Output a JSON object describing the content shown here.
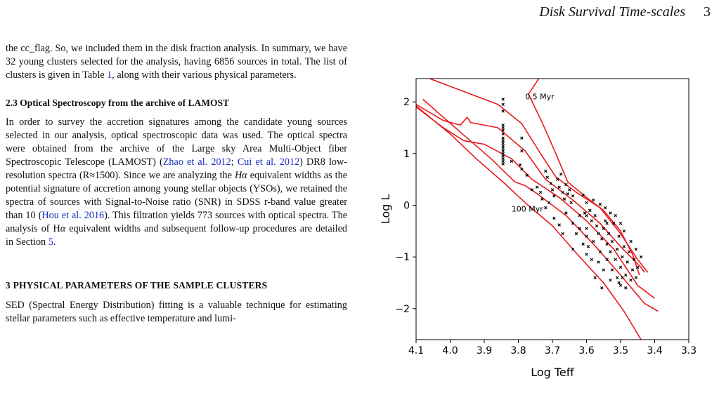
{
  "header": {
    "running_title": "Disk Survival Time-scales",
    "page_number": "3"
  },
  "text": {
    "para1": "the cc_flag. So, we included them in the disk fraction analysis. In summary, we have 32 young clusters selected for the analysis, having 6856 sources in total. The list of clusters is given in Table ",
    "para1_ref": "1",
    "para1_end": ", along with their various physical parameters.",
    "sec23_heading": "2.3 Optical Spectroscopy from the archive of LAMOST",
    "para2_a": "In order to survey the accretion signatures among the candidate young sources selected in our analysis, optical spectroscopic data was used. The optical spectra were obtained from the archive of the Large sky Area Multi-Object fiber Spectroscopic Telescope (LAMOST) (",
    "cite_zhao": "Zhao et al. 2012",
    "sep1": "; ",
    "cite_cui": "Cui et al. 2012",
    "para2_b": ") DR8 low-resolution spectra (R≈1500). Since we are analyzing the ",
    "halpha_italic": "Hα",
    "para2_c": " equivalent widths as the potential signature of accretion among young stellar objects (YSOs), we retained the spectra of sources with Signal-to-Noise ratio (SNR) in SDSS r-band value greater than 10 (",
    "cite_hou": "Hou et al. 2016",
    "para2_d": "). This filtration yields 773 sources with optical spectra. The analysis of H",
    "alpha_italic": "α",
    "para2_e": " equivalent widths and subsequent follow-up procedures are detailed in Section ",
    "sec_ref": "5",
    "para2_f": ".",
    "sec3_heading": "3 PHYSICAL PARAMETERS OF THE SAMPLE CLUSTERS",
    "para3": "SED (Spectral Energy Distribution) fitting is a valuable technique for estimating stellar parameters such as effective temperature and lumi-"
  },
  "chart_data": {
    "type": "scatter",
    "xlabel": "Log Teff",
    "ylabel": "Log L",
    "xlim": [
      4.1,
      3.3
    ],
    "ylim": [
      -2.6,
      2.45
    ],
    "xticks": [
      "4.1",
      "4.0",
      "3.9",
      "3.8",
      "3.7",
      "3.6",
      "3.5",
      "3.4",
      "3.3"
    ],
    "xtick_values": [
      4.1,
      4.0,
      3.9,
      3.8,
      3.7,
      3.6,
      3.5,
      3.4,
      3.3
    ],
    "yticks": [
      "2",
      "1",
      "0",
      "−1",
      "−2"
    ],
    "ytick_values": [
      2,
      1,
      0,
      -1,
      -2
    ],
    "annotations": [
      {
        "text": "0.5 Myr",
        "x": 3.78,
        "y": 2.05
      },
      {
        "text": "100 Myr",
        "x": 3.82,
        "y": -0.12
      }
    ],
    "colors": {
      "isochrone": "#e8191c",
      "points": "#000000"
    },
    "isochrones": [
      {
        "points": [
          [
            3.74,
            2.45
          ],
          [
            3.77,
            2.15
          ],
          [
            3.73,
            1.6
          ],
          [
            3.69,
            1.0
          ],
          [
            3.655,
            0.45
          ],
          [
            3.6,
            0.15
          ],
          [
            3.55,
            -0.1
          ],
          [
            3.5,
            -0.5
          ],
          [
            3.465,
            -0.95
          ],
          [
            3.445,
            -1.35
          ]
        ]
      },
      {
        "points": [
          [
            4.06,
            2.45
          ],
          [
            3.96,
            2.2
          ],
          [
            3.86,
            1.95
          ],
          [
            3.79,
            1.58
          ],
          [
            3.73,
            0.95
          ],
          [
            3.69,
            0.55
          ],
          [
            3.63,
            0.25
          ],
          [
            3.56,
            -0.05
          ],
          [
            3.5,
            -0.55
          ],
          [
            3.45,
            -1.05
          ],
          [
            3.42,
            -1.3
          ]
        ]
      },
      {
        "points": [
          [
            4.1,
            1.95
          ],
          [
            4.02,
            1.64
          ],
          [
            3.97,
            1.55
          ],
          [
            3.95,
            1.7
          ],
          [
            3.94,
            1.6
          ],
          [
            3.86,
            1.5
          ],
          [
            3.78,
            1.05
          ],
          [
            3.72,
            0.5
          ],
          [
            3.64,
            0.1
          ],
          [
            3.56,
            -0.35
          ],
          [
            3.5,
            -0.8
          ],
          [
            3.44,
            -1.2
          ],
          [
            3.43,
            -1.3
          ]
        ]
      },
      {
        "points": [
          [
            4.1,
            1.9
          ],
          [
            4.02,
            1.5
          ],
          [
            3.96,
            1.25
          ],
          [
            3.9,
            1.18
          ],
          [
            3.82,
            0.9
          ],
          [
            3.76,
            0.5
          ],
          [
            3.68,
            0.15
          ],
          [
            3.6,
            -0.3
          ],
          [
            3.52,
            -0.85
          ],
          [
            3.45,
            -1.55
          ],
          [
            3.4,
            -1.8
          ]
        ]
      },
      {
        "points": [
          [
            4.08,
            2.05
          ],
          [
            4.02,
            1.7
          ],
          [
            3.95,
            1.3
          ],
          [
            3.88,
            0.9
          ],
          [
            3.81,
            0.45
          ],
          [
            3.78,
            0.38
          ],
          [
            3.74,
            0.2
          ],
          [
            3.66,
            -0.2
          ],
          [
            3.58,
            -0.75
          ],
          [
            3.5,
            -1.35
          ],
          [
            3.43,
            -1.9
          ],
          [
            3.39,
            -2.05
          ]
        ]
      },
      {
        "points": [
          [
            4.1,
            1.92
          ],
          [
            4.0,
            1.38
          ],
          [
            3.92,
            0.88
          ],
          [
            3.84,
            0.42
          ],
          [
            3.78,
            0.05
          ],
          [
            3.7,
            -0.4
          ],
          [
            3.62,
            -1.0
          ],
          [
            3.55,
            -1.5
          ],
          [
            3.49,
            -2.05
          ],
          [
            3.44,
            -2.6
          ]
        ]
      }
    ],
    "stars": [
      {
        "x": 3.845,
        "y": 2.05
      },
      {
        "x": 3.845,
        "y": 1.95
      },
      {
        "x": 3.845,
        "y": 1.82
      },
      {
        "x": 3.845,
        "y": 1.55
      },
      {
        "x": 3.845,
        "y": 1.5
      },
      {
        "x": 3.845,
        "y": 1.45
      },
      {
        "x": 3.845,
        "y": 1.38
      },
      {
        "x": 3.845,
        "y": 1.3
      },
      {
        "x": 3.845,
        "y": 1.25
      },
      {
        "x": 3.845,
        "y": 1.2
      },
      {
        "x": 3.845,
        "y": 1.15
      },
      {
        "x": 3.845,
        "y": 1.1
      },
      {
        "x": 3.845,
        "y": 1.05
      },
      {
        "x": 3.845,
        "y": 1.0
      },
      {
        "x": 3.845,
        "y": 0.95
      },
      {
        "x": 3.845,
        "y": 0.9
      },
      {
        "x": 3.845,
        "y": 0.85
      },
      {
        "x": 3.845,
        "y": 0.8
      },
      {
        "x": 3.82,
        "y": 0.85
      },
      {
        "x": 3.79,
        "y": 1.3
      },
      {
        "x": 3.79,
        "y": 1.05
      },
      {
        "x": 3.795,
        "y": 0.78
      },
      {
        "x": 3.79,
        "y": 0.7
      },
      {
        "x": 3.775,
        "y": 0.58
      },
      {
        "x": 3.76,
        "y": 0.3
      },
      {
        "x": 3.72,
        "y": 0.66
      },
      {
        "x": 3.715,
        "y": 0.54
      },
      {
        "x": 3.705,
        "y": 0.42
      },
      {
        "x": 3.7,
        "y": 0.3
      },
      {
        "x": 3.695,
        "y": 0.18
      },
      {
        "x": 3.685,
        "y": 0.5
      },
      {
        "x": 3.68,
        "y": 0.35
      },
      {
        "x": 3.675,
        "y": 0.6
      },
      {
        "x": 3.67,
        "y": 0.25
      },
      {
        "x": 3.665,
        "y": 0.12
      },
      {
        "x": 3.66,
        "y": 0.4
      },
      {
        "x": 3.655,
        "y": 0.22
      },
      {
        "x": 3.65,
        "y": 0.3
      },
      {
        "x": 3.645,
        "y": 0.05
      },
      {
        "x": 3.64,
        "y": 0.18
      },
      {
        "x": 3.735,
        "y": 0.25
      },
      {
        "x": 3.73,
        "y": 0.12
      },
      {
        "x": 3.72,
        "y": -0.05
      },
      {
        "x": 3.71,
        "y": 0.05
      },
      {
        "x": 3.745,
        "y": 0.35
      },
      {
        "x": 3.695,
        "y": -0.25
      },
      {
        "x": 3.68,
        "y": -0.38
      },
      {
        "x": 3.61,
        "y": 0.2
      },
      {
        "x": 3.6,
        "y": 0.05
      },
      {
        "x": 3.605,
        "y": -0.15
      },
      {
        "x": 3.59,
        "y": -0.1
      },
      {
        "x": 3.585,
        "y": -0.3
      },
      {
        "x": 3.62,
        "y": -0.2
      },
      {
        "x": 3.6,
        "y": -0.45
      },
      {
        "x": 3.575,
        "y": -0.2
      },
      {
        "x": 3.57,
        "y": -0.4
      },
      {
        "x": 3.565,
        "y": -0.55
      },
      {
        "x": 3.555,
        "y": -0.65
      },
      {
        "x": 3.55,
        "y": -0.45
      },
      {
        "x": 3.545,
        "y": -0.3
      },
      {
        "x": 3.54,
        "y": -0.75
      },
      {
        "x": 3.535,
        "y": -0.55
      },
      {
        "x": 3.53,
        "y": -0.9
      },
      {
        "x": 3.525,
        "y": -0.7
      },
      {
        "x": 3.52,
        "y": -0.35
      },
      {
        "x": 3.515,
        "y": -1.05
      },
      {
        "x": 3.51,
        "y": -0.85
      },
      {
        "x": 3.505,
        "y": -0.6
      },
      {
        "x": 3.5,
        "y": -1.2
      },
      {
        "x": 3.495,
        "y": -1.0
      },
      {
        "x": 3.49,
        "y": -0.8
      },
      {
        "x": 3.485,
        "y": -1.35
      },
      {
        "x": 3.48,
        "y": -1.1
      },
      {
        "x": 3.475,
        "y": -0.9
      },
      {
        "x": 3.47,
        "y": -1.45
      },
      {
        "x": 3.465,
        "y": -1.25
      },
      {
        "x": 3.46,
        "y": -1.05
      },
      {
        "x": 3.455,
        "y": -1.4
      },
      {
        "x": 3.45,
        "y": -1.2
      },
      {
        "x": 3.5,
        "y": -1.55
      },
      {
        "x": 3.485,
        "y": -1.6
      },
      {
        "x": 3.51,
        "y": -1.4
      },
      {
        "x": 3.525,
        "y": -1.25
      },
      {
        "x": 3.54,
        "y": -1.05
      },
      {
        "x": 3.56,
        "y": -0.9
      },
      {
        "x": 3.58,
        "y": -0.7
      },
      {
        "x": 3.6,
        "y": -0.6
      },
      {
        "x": 3.62,
        "y": -0.45
      },
      {
        "x": 3.64,
        "y": -0.35
      },
      {
        "x": 3.66,
        "y": -0.15
      },
      {
        "x": 3.575,
        "y": -1.4
      },
      {
        "x": 3.555,
        "y": -1.6
      },
      {
        "x": 3.565,
        "y": -1.1
      },
      {
        "x": 3.595,
        "y": -0.8
      },
      {
        "x": 3.61,
        "y": -0.75
      },
      {
        "x": 3.63,
        "y": -0.55
      },
      {
        "x": 3.515,
        "y": -0.2
      },
      {
        "x": 3.5,
        "y": -0.35
      },
      {
        "x": 3.49,
        "y": -0.5
      },
      {
        "x": 3.545,
        "y": -0.05
      },
      {
        "x": 3.53,
        "y": -0.15
      },
      {
        "x": 3.56,
        "y": 0.02
      },
      {
        "x": 3.58,
        "y": 0.1
      },
      {
        "x": 3.47,
        "y": -0.7
      },
      {
        "x": 3.455,
        "y": -0.85
      },
      {
        "x": 3.44,
        "y": -1.0
      },
      {
        "x": 3.55,
        "y": -1.25
      },
      {
        "x": 3.53,
        "y": -1.45
      },
      {
        "x": 3.505,
        "y": -1.5
      },
      {
        "x": 3.495,
        "y": -1.4
      },
      {
        "x": 3.6,
        "y": -0.95
      },
      {
        "x": 3.585,
        "y": -1.05
      },
      {
        "x": 3.64,
        "y": -0.85
      },
      {
        "x": 3.67,
        "y": -0.55
      },
      {
        "x": 3.54,
        "y": -0.35
      },
      {
        "x": 3.6,
        "y": -0.2
      }
    ]
  }
}
